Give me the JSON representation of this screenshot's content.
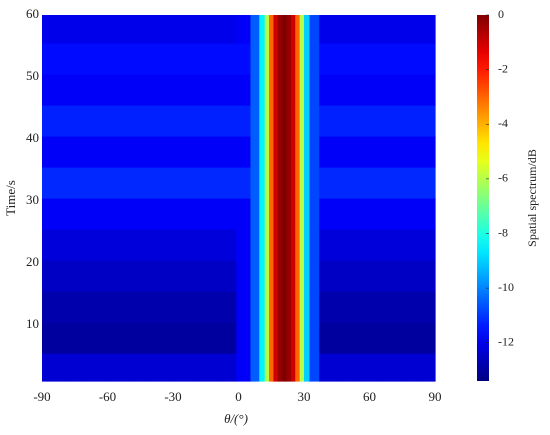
{
  "chart_data": {
    "type": "heatmap",
    "xlabel": "θ/(°)",
    "ylabel": "Time/s",
    "colorbar_label": "Spatial spectrum/dB",
    "colormap": "jet",
    "x": [
      -85,
      -75,
      -65,
      -55,
      -45,
      -35,
      -25,
      -15,
      -5,
      3,
      8,
      11,
      13,
      15,
      17,
      19,
      21,
      23,
      25,
      27,
      29,
      31,
      34,
      40,
      50,
      60,
      70,
      80,
      88
    ],
    "y": [
      3,
      8,
      13,
      18,
      23,
      28,
      33,
      38,
      43,
      48,
      53,
      58
    ],
    "z": [
      [
        -12.3,
        -12.3,
        -12.3,
        -12.3,
        -12.3,
        -12.3,
        -12.3,
        -12.3,
        -12.3,
        -11.8,
        -10.5,
        -8.5,
        -6,
        -3,
        -1,
        -0.3,
        0,
        -0.3,
        -1,
        -3,
        -6,
        -9,
        -10.8,
        -12.3,
        -12.3,
        -12.3,
        -12.3,
        -12.3,
        -12.3
      ],
      [
        -13,
        -13,
        -13,
        -13,
        -13,
        -13,
        -13,
        -13,
        -13,
        -11.8,
        -10.5,
        -8.5,
        -6,
        -3,
        -1,
        -0.3,
        0,
        -0.3,
        -1,
        -3,
        -6,
        -9,
        -10.8,
        -13,
        -13,
        -13,
        -13,
        -13,
        -13
      ],
      [
        -12.8,
        -12.8,
        -12.8,
        -12.8,
        -12.8,
        -12.8,
        -12.8,
        -12.8,
        -12.8,
        -11.8,
        -10.5,
        -8.5,
        -6,
        -3,
        -1,
        -0.3,
        0,
        -0.3,
        -1,
        -3,
        -6,
        -9,
        -10.8,
        -12.8,
        -12.8,
        -12.8,
        -12.8,
        -12.8,
        -12.8
      ],
      [
        -12.5,
        -12.5,
        -12.5,
        -12.5,
        -12.5,
        -12.5,
        -12.5,
        -12.5,
        -12.5,
        -11.8,
        -10.5,
        -8.5,
        -6,
        -3,
        -1,
        -0.3,
        0,
        -0.3,
        -1,
        -3,
        -6,
        -9,
        -10.8,
        -12.5,
        -12.5,
        -12.5,
        -12.5,
        -12.5,
        -12.5
      ],
      [
        -12.2,
        -12.2,
        -12.2,
        -12.2,
        -12.2,
        -12.2,
        -12.2,
        -12.2,
        -12.2,
        -11.8,
        -10.5,
        -8.5,
        -6,
        -3,
        -1,
        -0.3,
        0,
        -0.3,
        -1,
        -3,
        -6,
        -9,
        -10.8,
        -12.2,
        -12.2,
        -12.2,
        -12.2,
        -12.2,
        -12.2
      ],
      [
        -11.8,
        -11.8,
        -11.8,
        -11.8,
        -11.8,
        -11.8,
        -11.8,
        -11.8,
        -11.8,
        -11.8,
        -10.5,
        -8.5,
        -6,
        -3,
        -1,
        -0.3,
        0,
        -0.3,
        -1,
        -3,
        -6,
        -9,
        -10.8,
        -11.8,
        -11.8,
        -11.8,
        -11.8,
        -11.8,
        -11.8
      ],
      [
        -11.2,
        -11.2,
        -11.2,
        -11.2,
        -11.2,
        -11.2,
        -11.2,
        -11.2,
        -11.2,
        -11.2,
        -10.5,
        -8.5,
        -6,
        -3,
        -1,
        -0.3,
        0,
        -0.3,
        -1,
        -3,
        -6,
        -9,
        -10.8,
        -11.2,
        -11.2,
        -11.2,
        -11.2,
        -11.2,
        -11.2
      ],
      [
        -11.8,
        -11.8,
        -11.8,
        -11.8,
        -11.8,
        -11.8,
        -11.8,
        -11.8,
        -11.8,
        -11.8,
        -10.5,
        -8.5,
        -6,
        -3,
        -1,
        -0.3,
        0,
        -0.3,
        -1,
        -3,
        -6,
        -9,
        -10.8,
        -11.8,
        -11.8,
        -11.8,
        -11.8,
        -11.8,
        -11.8
      ],
      [
        -11.3,
        -11.3,
        -11.3,
        -11.3,
        -11.3,
        -11.3,
        -11.3,
        -11.3,
        -11.3,
        -11.3,
        -10.5,
        -8.5,
        -6,
        -3,
        -1,
        -0.3,
        0,
        -0.3,
        -1,
        -3,
        -6,
        -9,
        -10.8,
        -11.3,
        -11.3,
        -11.3,
        -11.3,
        -11.3,
        -11.3
      ],
      [
        -11.8,
        -11.8,
        -11.8,
        -11.8,
        -11.8,
        -11.8,
        -11.8,
        -11.8,
        -11.8,
        -11.8,
        -10.5,
        -8.5,
        -6,
        -3,
        -1,
        -0.3,
        0,
        -0.3,
        -1,
        -3,
        -6,
        -9,
        -10.8,
        -11.8,
        -11.8,
        -11.8,
        -11.8,
        -11.8,
        -11.8
      ],
      [
        -11.6,
        -11.6,
        -11.6,
        -11.6,
        -11.6,
        -11.6,
        -11.6,
        -11.6,
        -11.6,
        -11.6,
        -10.5,
        -8.5,
        -6,
        -3,
        -1,
        -0.3,
        0,
        -0.3,
        -1,
        -3,
        -6,
        -9,
        -10.8,
        -11.6,
        -11.6,
        -11.6,
        -11.6,
        -11.6,
        -11.6
      ],
      [
        -12,
        -12,
        -12,
        -12,
        -12,
        -12,
        -12,
        -12,
        -12,
        -11.8,
        -10.5,
        -8.5,
        -6,
        -3,
        -1,
        -0.3,
        0,
        -0.3,
        -1,
        -3,
        -6,
        -9,
        -10.8,
        -12,
        -12,
        -12,
        -12,
        -12,
        -12
      ]
    ],
    "xlim": [
      -90,
      90
    ],
    "xticks": [
      -90,
      -60,
      -30,
      0,
      30,
      60,
      90
    ],
    "ylim": [
      1,
      60
    ],
    "yticks": [
      10,
      20,
      30,
      40,
      50,
      60
    ],
    "zlim": [
      -13.4,
      0
    ],
    "zticks": [
      0,
      -2,
      -4,
      -6,
      -8,
      -10,
      -12
    ]
  }
}
